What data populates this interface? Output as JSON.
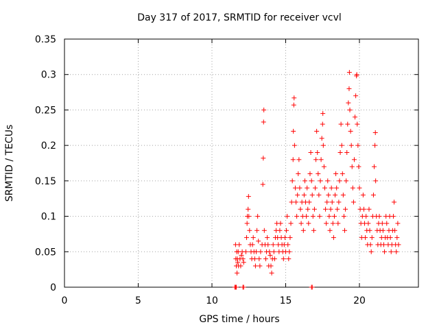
{
  "chart_data": {
    "type": "scatter",
    "title": "Day 317 of 2017, SRMTID for receiver vcvl",
    "xlabel": "GPS time / hours",
    "ylabel": "SRMTID / TECUs",
    "xlim": [
      0,
      24
    ],
    "ylim": [
      0,
      0.35
    ],
    "xticks": [
      0,
      5,
      10,
      15,
      20
    ],
    "yticks": [
      0,
      0.05,
      0.1,
      0.15,
      0.2,
      0.25,
      0.3,
      0.35
    ],
    "xtick_labels": [
      "0",
      "5",
      "10",
      "15",
      "20"
    ],
    "ytick_labels": [
      "0",
      "0.05",
      "0.1",
      "0.15",
      "0.2",
      "0.25",
      "0.3",
      "0.35"
    ],
    "grid": true,
    "marker": "plus",
    "color": "#ff0000",
    "series": [
      {
        "name": "SRMTID",
        "points": [
          [
            11.6,
            0.06
          ],
          [
            11.62,
            0.04
          ],
          [
            11.65,
            0.03
          ],
          [
            11.68,
            0.05
          ],
          [
            11.7,
            0.02
          ],
          [
            11.72,
            0.04
          ],
          [
            11.75,
            0.035
          ],
          [
            11.78,
            0.05
          ],
          [
            11.8,
            0.03
          ],
          [
            11.85,
            0.06
          ],
          [
            11.9,
            0.04
          ],
          [
            11.95,
            0.03
          ],
          [
            12.0,
            0.045
          ],
          [
            12.05,
            0.05
          ],
          [
            12.1,
            0.04
          ],
          [
            12.15,
            0.035
          ],
          [
            12.3,
            0.05
          ],
          [
            12.35,
            0.07
          ],
          [
            12.38,
            0.09
          ],
          [
            12.4,
            0.1
          ],
          [
            12.45,
            0.11
          ],
          [
            12.48,
            0.128
          ],
          [
            12.5,
            0.1
          ],
          [
            12.55,
            0.08
          ],
          [
            12.6,
            0.06
          ],
          [
            12.65,
            0.05
          ],
          [
            12.7,
            0.04
          ],
          [
            12.75,
            0.06
          ],
          [
            12.8,
            0.07
          ],
          [
            12.85,
            0.05
          ],
          [
            12.9,
            0.04
          ],
          [
            12.95,
            0.03
          ],
          [
            13.0,
            0.05
          ],
          [
            13.05,
            0.08
          ],
          [
            13.1,
            0.1
          ],
          [
            13.15,
            0.065
          ],
          [
            13.2,
            0.04
          ],
          [
            13.25,
            0.03
          ],
          [
            13.3,
            0.05
          ],
          [
            13.4,
            0.06
          ],
          [
            13.45,
            0.145
          ],
          [
            13.48,
            0.182
          ],
          [
            13.5,
            0.233
          ],
          [
            13.52,
            0.25
          ],
          [
            13.55,
            0.08
          ],
          [
            13.6,
            0.06
          ],
          [
            13.65,
            0.04
          ],
          [
            13.7,
            0.05
          ],
          [
            13.75,
            0.07
          ],
          [
            13.8,
            0.06
          ],
          [
            13.85,
            0.03
          ],
          [
            13.9,
            0.05
          ],
          [
            13.95,
            0.045
          ],
          [
            14.0,
            0.03
          ],
          [
            14.05,
            0.02
          ],
          [
            14.1,
            0.04
          ],
          [
            14.15,
            0.06
          ],
          [
            14.2,
            0.05
          ],
          [
            14.25,
            0.04
          ],
          [
            14.3,
            0.07
          ],
          [
            14.35,
            0.08
          ],
          [
            14.4,
            0.09
          ],
          [
            14.45,
            0.07
          ],
          [
            14.5,
            0.06
          ],
          [
            14.55,
            0.05
          ],
          [
            14.6,
            0.08
          ],
          [
            14.65,
            0.09
          ],
          [
            14.7,
            0.07
          ],
          [
            14.75,
            0.06
          ],
          [
            14.8,
            0.05
          ],
          [
            14.85,
            0.04
          ],
          [
            14.9,
            0.06
          ],
          [
            14.95,
            0.07
          ],
          [
            15.0,
            0.05
          ],
          [
            15.05,
            0.08
          ],
          [
            15.1,
            0.1
          ],
          [
            15.15,
            0.06
          ],
          [
            15.2,
            0.04
          ],
          [
            15.25,
            0.05
          ],
          [
            15.3,
            0.07
          ],
          [
            15.35,
            0.09
          ],
          [
            15.4,
            0.12
          ],
          [
            15.45,
            0.15
          ],
          [
            15.5,
            0.18
          ],
          [
            15.52,
            0.22
          ],
          [
            15.55,
            0.257
          ],
          [
            15.57,
            0.267
          ],
          [
            15.6,
            0.2
          ],
          [
            15.65,
            0.14
          ],
          [
            15.7,
            0.12
          ],
          [
            15.75,
            0.1
          ],
          [
            15.8,
            0.13
          ],
          [
            15.85,
            0.16
          ],
          [
            15.9,
            0.18
          ],
          [
            15.95,
            0.14
          ],
          [
            16.0,
            0.11
          ],
          [
            16.05,
            0.09
          ],
          [
            16.1,
            0.12
          ],
          [
            16.15,
            0.1
          ],
          [
            16.2,
            0.08
          ],
          [
            16.25,
            0.13
          ],
          [
            16.3,
            0.15
          ],
          [
            16.35,
            0.12
          ],
          [
            16.4,
            0.1
          ],
          [
            16.45,
            0.14
          ],
          [
            16.5,
            0.11
          ],
          [
            16.55,
            0.09
          ],
          [
            16.6,
            0.12
          ],
          [
            16.65,
            0.16
          ],
          [
            16.7,
            0.19
          ],
          [
            16.75,
            0.15
          ],
          [
            16.8,
            0.13
          ],
          [
            16.85,
            0.1
          ],
          [
            16.9,
            0.08
          ],
          [
            16.95,
            0.11
          ],
          [
            17.0,
            0.14
          ],
          [
            17.05,
            0.18
          ],
          [
            17.1,
            0.22
          ],
          [
            17.15,
            0.19
          ],
          [
            17.2,
            0.16
          ],
          [
            17.25,
            0.13
          ],
          [
            17.3,
            0.1
          ],
          [
            17.35,
            0.15
          ],
          [
            17.4,
            0.18
          ],
          [
            17.45,
            0.21
          ],
          [
            17.5,
            0.23
          ],
          [
            17.52,
            0.245
          ],
          [
            17.55,
            0.2
          ],
          [
            17.6,
            0.17
          ],
          [
            17.65,
            0.14
          ],
          [
            17.7,
            0.11
          ],
          [
            17.75,
            0.09
          ],
          [
            17.8,
            0.12
          ],
          [
            17.85,
            0.15
          ],
          [
            17.9,
            0.13
          ],
          [
            17.95,
            0.1
          ],
          [
            18.0,
            0.08
          ],
          [
            18.05,
            0.11
          ],
          [
            18.1,
            0.14
          ],
          [
            18.15,
            0.12
          ],
          [
            18.2,
            0.09
          ],
          [
            18.25,
            0.07
          ],
          [
            18.3,
            0.1
          ],
          [
            18.35,
            0.13
          ],
          [
            18.4,
            0.16
          ],
          [
            18.45,
            0.14
          ],
          [
            18.5,
            0.11
          ],
          [
            18.55,
            0.09
          ],
          [
            18.6,
            0.12
          ],
          [
            18.65,
            0.15
          ],
          [
            18.7,
            0.19
          ],
          [
            18.75,
            0.23
          ],
          [
            18.8,
            0.2
          ],
          [
            18.85,
            0.16
          ],
          [
            18.9,
            0.13
          ],
          [
            18.95,
            0.1
          ],
          [
            19.0,
            0.08
          ],
          [
            19.05,
            0.11
          ],
          [
            19.1,
            0.15
          ],
          [
            19.15,
            0.19
          ],
          [
            19.2,
            0.23
          ],
          [
            19.25,
            0.26
          ],
          [
            19.3,
            0.28
          ],
          [
            19.32,
            0.303
          ],
          [
            19.35,
            0.25
          ],
          [
            19.4,
            0.22
          ],
          [
            19.45,
            0.2
          ],
          [
            19.5,
            0.17
          ],
          [
            19.55,
            0.14
          ],
          [
            19.6,
            0.12
          ],
          [
            19.65,
            0.18
          ],
          [
            19.7,
            0.24
          ],
          [
            19.75,
            0.27
          ],
          [
            19.8,
            0.298
          ],
          [
            19.82,
            0.3
          ],
          [
            19.85,
            0.23
          ],
          [
            19.9,
            0.2
          ],
          [
            19.95,
            0.17
          ],
          [
            20.0,
            0.14
          ],
          [
            20.05,
            0.11
          ],
          [
            20.1,
            0.09
          ],
          [
            20.15,
            0.07
          ],
          [
            20.2,
            0.1
          ],
          [
            20.25,
            0.13
          ],
          [
            20.3,
            0.11
          ],
          [
            20.35,
            0.09
          ],
          [
            20.4,
            0.07
          ],
          [
            20.45,
            0.1
          ],
          [
            20.5,
            0.08
          ],
          [
            20.55,
            0.06
          ],
          [
            20.6,
            0.09
          ],
          [
            20.65,
            0.11
          ],
          [
            20.7,
            0.08
          ],
          [
            20.75,
            0.06
          ],
          [
            20.8,
            0.05
          ],
          [
            20.85,
            0.07
          ],
          [
            20.9,
            0.1
          ],
          [
            20.95,
            0.13
          ],
          [
            21.0,
            0.17
          ],
          [
            21.05,
            0.2
          ],
          [
            21.08,
            0.218
          ],
          [
            21.1,
            0.15
          ],
          [
            21.15,
            0.1
          ],
          [
            21.2,
            0.08
          ],
          [
            21.25,
            0.06
          ],
          [
            21.3,
            0.09
          ],
          [
            21.35,
            0.1
          ],
          [
            21.4,
            0.08
          ],
          [
            21.45,
            0.06
          ],
          [
            21.5,
            0.07
          ],
          [
            21.55,
            0.09
          ],
          [
            21.6,
            0.08
          ],
          [
            21.65,
            0.06
          ],
          [
            21.7,
            0.05
          ],
          [
            21.75,
            0.07
          ],
          [
            21.8,
            0.1
          ],
          [
            21.85,
            0.09
          ],
          [
            21.9,
            0.07
          ],
          [
            21.95,
            0.06
          ],
          [
            22.0,
            0.08
          ],
          [
            22.05,
            0.1
          ],
          [
            22.1,
            0.07
          ],
          [
            22.15,
            0.05
          ],
          [
            22.2,
            0.06
          ],
          [
            22.25,
            0.08
          ],
          [
            22.3,
            0.1
          ],
          [
            22.35,
            0.12
          ],
          [
            22.4,
            0.08
          ],
          [
            22.45,
            0.06
          ],
          [
            22.5,
            0.05
          ],
          [
            22.55,
            0.07
          ],
          [
            22.6,
            0.09
          ],
          [
            22.65,
            0.06
          ]
        ],
        "zero_points": [
          11.55,
          11.6,
          11.65,
          12.1,
          12.15,
          16.75,
          16.8
        ]
      }
    ]
  }
}
